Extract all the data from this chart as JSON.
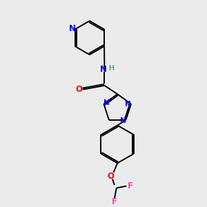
{
  "background_color": "#ebebeb",
  "bond_color": "#000000",
  "nitrogen_color": "#0000ff",
  "oxygen_color": "#ff0000",
  "fluorine_color": "#ff44aa",
  "nh_n_color": "#0000ff",
  "nh_h_color": "#008080",
  "figsize": [
    3.0,
    3.0
  ],
  "dpi": 100,
  "xlim": [
    0,
    10
  ],
  "ylim": [
    0,
    10
  ]
}
